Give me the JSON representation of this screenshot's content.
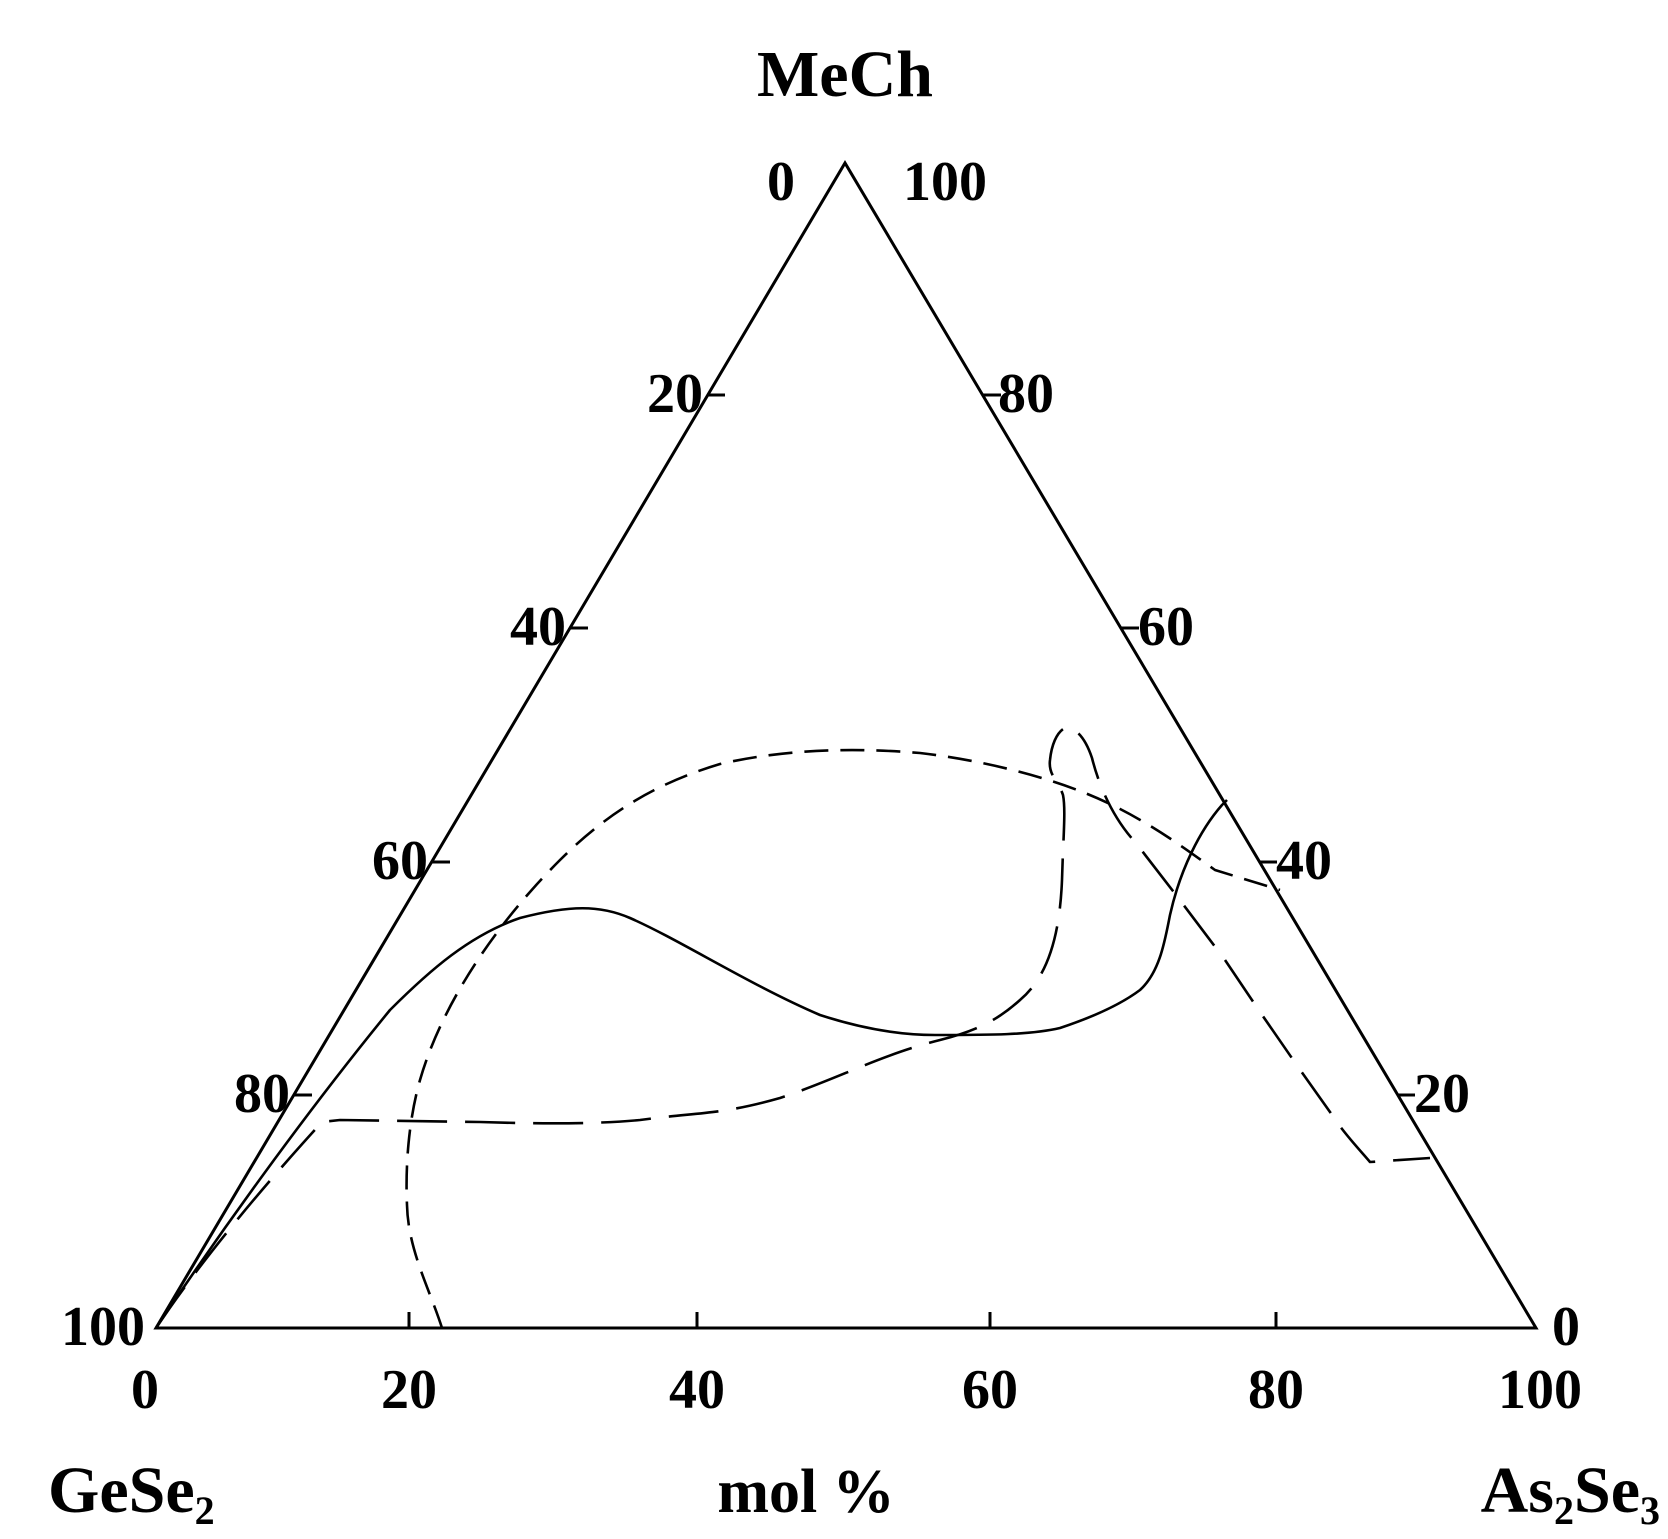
{
  "vertices": {
    "top": "MeCh",
    "bottom_left_main": "GeSe",
    "bottom_left_sub": "2",
    "bottom_right_main1": "As",
    "bottom_right_sub1": "2",
    "bottom_right_main2": "Se",
    "bottom_right_sub2": "3"
  },
  "axis_title": "mol %",
  "ticks": {
    "bottom": [
      "0",
      "20",
      "40",
      "60",
      "80",
      "100"
    ],
    "left": [
      "0",
      "20",
      "40",
      "60",
      "80",
      "100"
    ],
    "right": [
      "100",
      "80",
      "60",
      "40",
      "20",
      "0"
    ]
  },
  "curves": [
    {
      "style": "solid"
    },
    {
      "style": "short-dash"
    },
    {
      "style": "long-dash"
    }
  ],
  "colors": {
    "ink": "#000000",
    "background": "#ffffff"
  }
}
